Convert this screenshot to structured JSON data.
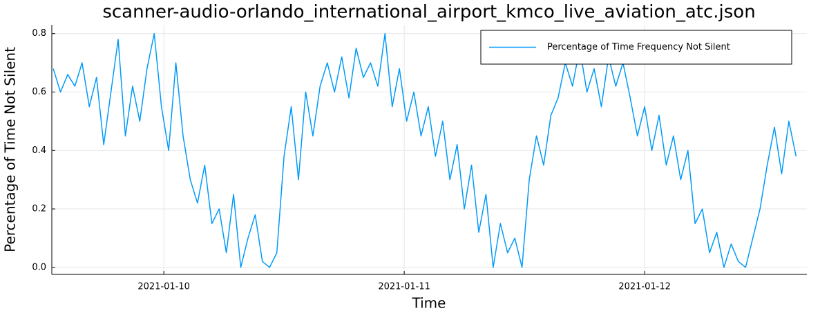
{
  "chart_data": {
    "type": "line",
    "title": "scanner-audio-orlando_international_airport_kmco_live_aviation_atc.json",
    "xlabel": "Time",
    "ylabel": "Percentage of Time Not Silent",
    "x": [
      9.54,
      9.57,
      9.6,
      9.63,
      9.66,
      9.69,
      9.72,
      9.75,
      9.78,
      9.81,
      9.84,
      9.87,
      9.9,
      9.93,
      9.96,
      9.99,
      10.02,
      10.05,
      10.08,
      10.11,
      10.14,
      10.17,
      10.2,
      10.23,
      10.26,
      10.29,
      10.32,
      10.35,
      10.38,
      10.41,
      10.44,
      10.47,
      10.5,
      10.53,
      10.56,
      10.59,
      10.62,
      10.65,
      10.68,
      10.71,
      10.74,
      10.77,
      10.8,
      10.83,
      10.86,
      10.89,
      10.92,
      10.95,
      10.98,
      11.01,
      11.04,
      11.07,
      11.1,
      11.13,
      11.16,
      11.19,
      11.22,
      11.25,
      11.28,
      11.31,
      11.34,
      11.37,
      11.4,
      11.43,
      11.46,
      11.49,
      11.52,
      11.55,
      11.58,
      11.61,
      11.64,
      11.67,
      11.7,
      11.73,
      11.76,
      11.79,
      11.82,
      11.85,
      11.88,
      11.91,
      11.94,
      11.97,
      12.0,
      12.03,
      12.06,
      12.09,
      12.12,
      12.15,
      12.18,
      12.21,
      12.24,
      12.27,
      12.3,
      12.33,
      12.36,
      12.39,
      12.42,
      12.45,
      12.48,
      12.51,
      12.54,
      12.57,
      12.6,
      12.63
    ],
    "series": [
      {
        "name": "Percentage of Time Frequency Not Silent",
        "color": "#009af9",
        "values": [
          0.68,
          0.6,
          0.66,
          0.62,
          0.7,
          0.55,
          0.65,
          0.42,
          0.6,
          0.78,
          0.45,
          0.62,
          0.5,
          0.68,
          0.8,
          0.55,
          0.4,
          0.7,
          0.45,
          0.3,
          0.22,
          0.35,
          0.15,
          0.2,
          0.05,
          0.25,
          0,
          0.1,
          0.18,
          0.02,
          0,
          0.05,
          0.38,
          0.55,
          0.3,
          0.6,
          0.45,
          0.62,
          0.7,
          0.6,
          0.72,
          0.58,
          0.75,
          0.65,
          0.7,
          0.62,
          0.8,
          0.55,
          0.68,
          0.5,
          0.6,
          0.45,
          0.55,
          0.38,
          0.5,
          0.3,
          0.42,
          0.2,
          0.35,
          0.12,
          0.25,
          0,
          0.15,
          0.05,
          0.1,
          0,
          0.3,
          0.45,
          0.35,
          0.52,
          0.58,
          0.7,
          0.62,
          0.75,
          0.6,
          0.68,
          0.55,
          0.72,
          0.62,
          0.7,
          0.58,
          0.45,
          0.55,
          0.4,
          0.52,
          0.35,
          0.45,
          0.3,
          0.4,
          0.15,
          0.2,
          0.05,
          0.12,
          0,
          0.08,
          0.02,
          0,
          0.1,
          0.2,
          0.35,
          0.48,
          0.32,
          0.5,
          0.38
        ]
      }
    ],
    "xlim": [
      9.534,
      12.675
    ],
    "xticks": [
      {
        "value": 10,
        "label": "2021-01-10"
      },
      {
        "value": 11,
        "label": "2021-01-11"
      },
      {
        "value": 12,
        "label": "2021-01-12"
      }
    ],
    "ylim": [
      -0.024,
      0.83
    ],
    "yticks": [
      {
        "value": 0,
        "label": "0.0"
      },
      0.2,
      0.4,
      0.6,
      0.8
    ],
    "grid": true,
    "legend": "top-right"
  }
}
